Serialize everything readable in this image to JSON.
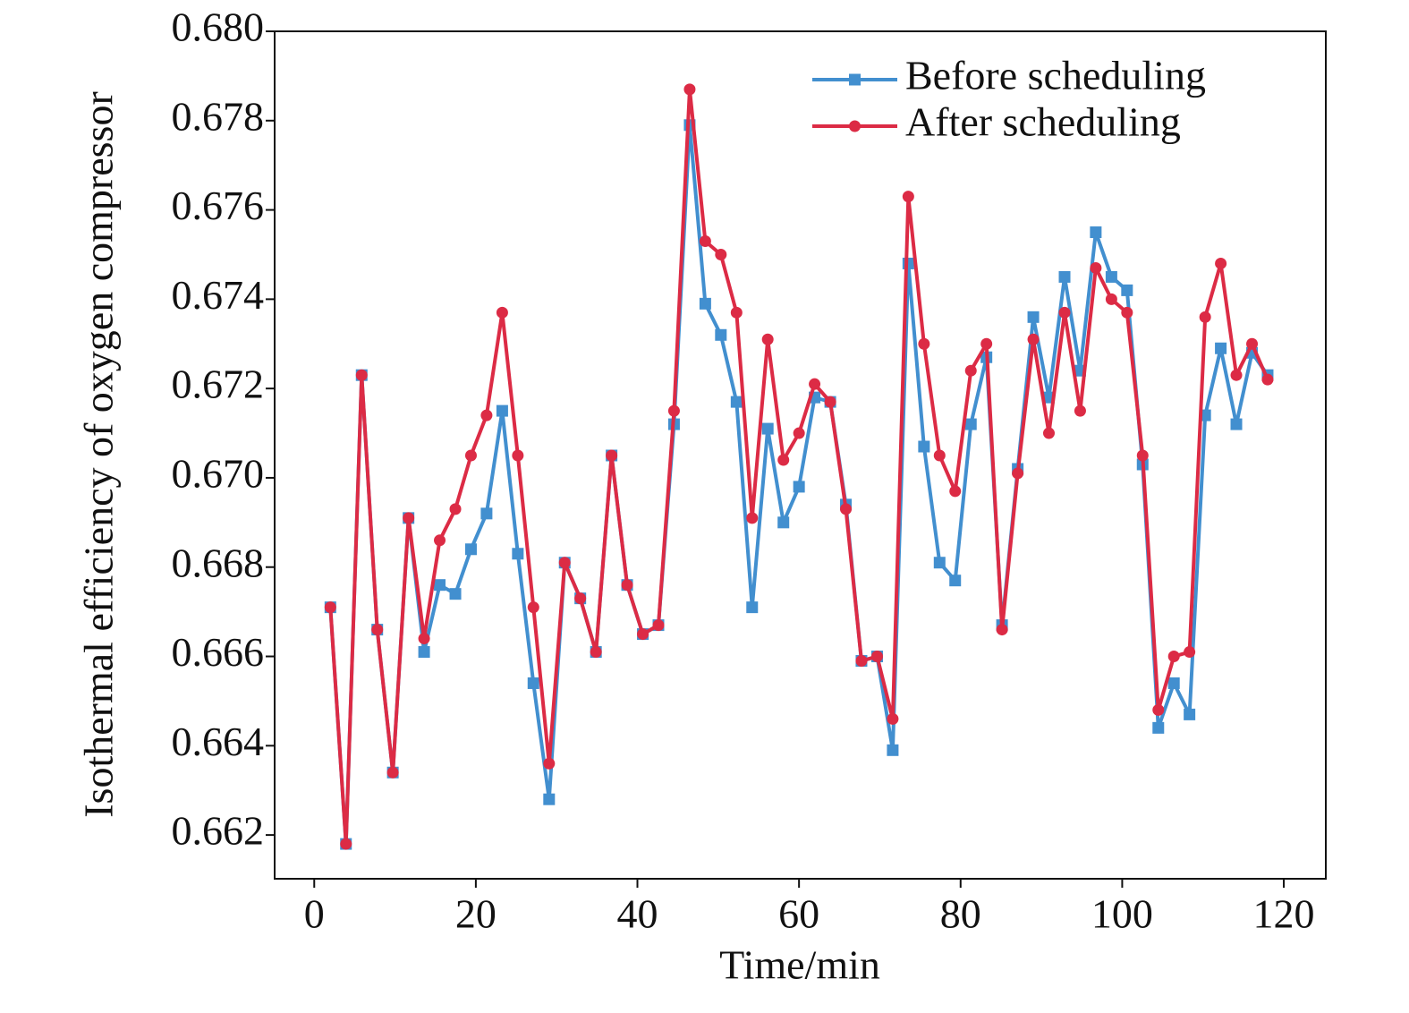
{
  "chart_data": {
    "type": "line",
    "xlabel": "Time/min",
    "ylabel": "Isothermal efficiency of oxygen compressor",
    "x": [
      2.0,
      3.93,
      5.87,
      7.8,
      9.73,
      11.67,
      13.6,
      15.53,
      17.47,
      19.4,
      21.33,
      23.27,
      25.2,
      27.13,
      29.07,
      31.0,
      32.93,
      34.87,
      36.8,
      38.73,
      40.67,
      42.6,
      44.53,
      46.47,
      48.4,
      50.33,
      52.27,
      54.2,
      56.13,
      58.07,
      60.0,
      61.93,
      63.87,
      65.8,
      67.73,
      69.67,
      71.6,
      73.53,
      75.47,
      77.4,
      79.33,
      81.27,
      83.2,
      85.13,
      87.07,
      89.0,
      90.93,
      92.87,
      94.8,
      96.73,
      98.67,
      100.6,
      102.53,
      104.47,
      106.4,
      108.33,
      110.27,
      112.2,
      114.13,
      116.07,
      118.0
    ],
    "series": [
      {
        "name": "Before scheduling",
        "color": "#428fcf",
        "marker": "square",
        "values": [
          0.6671,
          0.6618,
          0.6723,
          0.6666,
          0.6634,
          0.6691,
          0.6661,
          0.6676,
          0.6674,
          0.6684,
          0.6692,
          0.6715,
          0.6683,
          0.6654,
          0.6628,
          0.6681,
          0.6673,
          0.6661,
          0.6705,
          0.6676,
          0.6665,
          0.6667,
          0.6712,
          0.6779,
          0.6739,
          0.6732,
          0.6717,
          0.6671,
          0.6711,
          0.669,
          0.6698,
          0.6718,
          0.6717,
          0.6694,
          0.6659,
          0.666,
          0.6639,
          0.6748,
          0.6707,
          0.6681,
          0.6677,
          0.6712,
          0.6727,
          0.6667,
          0.6702,
          0.6736,
          0.6718,
          0.6745,
          0.6724,
          0.6755,
          0.6745,
          0.6742,
          0.6703,
          0.6644,
          0.6654,
          0.6647,
          0.6714,
          0.6729,
          0.6712,
          0.6728,
          0.6723
        ]
      },
      {
        "name": "After scheduling",
        "color": "#dc2b45",
        "marker": "circle",
        "values": [
          0.6671,
          0.6618,
          0.6723,
          0.6666,
          0.6634,
          0.6691,
          0.6664,
          0.6686,
          0.6693,
          0.6705,
          0.6714,
          0.6737,
          0.6705,
          0.6671,
          0.6636,
          0.6681,
          0.6673,
          0.6661,
          0.6705,
          0.6676,
          0.6665,
          0.6667,
          0.6715,
          0.6787,
          0.6753,
          0.675,
          0.6737,
          0.6691,
          0.6731,
          0.6704,
          0.671,
          0.6721,
          0.6717,
          0.6693,
          0.6659,
          0.666,
          0.6646,
          0.6763,
          0.673,
          0.6705,
          0.6697,
          0.6724,
          0.673,
          0.6666,
          0.6701,
          0.6731,
          0.671,
          0.6737,
          0.6715,
          0.6747,
          0.674,
          0.6737,
          0.6705,
          0.6648,
          0.666,
          0.6661,
          0.6736,
          0.6748,
          0.6723,
          0.673,
          0.6722
        ]
      }
    ],
    "xlim": [
      -4.9,
      125.2
    ],
    "xticks": [
      0,
      20,
      40,
      60,
      80,
      100,
      120
    ],
    "ylim": [
      0.66102,
      0.68
    ],
    "yticks": [
      0.662,
      0.664,
      0.666,
      0.668,
      {
        "value": 0.67,
        "label": "0.670"
      },
      0.672,
      0.674,
      0.676,
      0.678,
      {
        "value": 0.68,
        "label": "0.680"
      }
    ],
    "legend": "upper right",
    "grid": false
  }
}
